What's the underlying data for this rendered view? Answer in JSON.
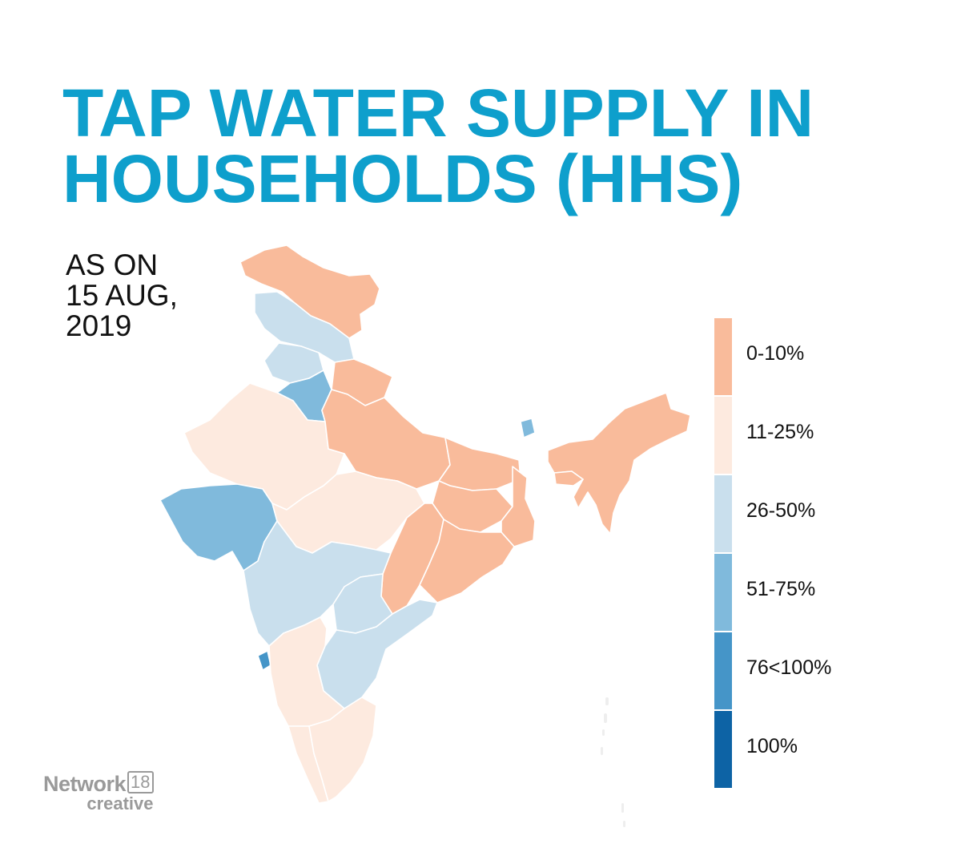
{
  "title": {
    "line1": "TAP WATER SUPPLY IN",
    "line2": "HOUSEHOLDS (HHS)"
  },
  "date": {
    "line1": "AS ON",
    "line2": "15 AUG,",
    "line3": "2019"
  },
  "legend": [
    {
      "label": "0-10%",
      "color": "#f9bb9b"
    },
    {
      "label": "11-25%",
      "color": "#fdeadf"
    },
    {
      "label": "26-50%",
      "color": "#c9dfed"
    },
    {
      "label": "51-75%",
      "color": "#80badc"
    },
    {
      "label": "76<100%",
      "color": "#4595c8"
    },
    {
      "label": "100%",
      "color": "#0d63a5"
    }
  ],
  "chart_data": {
    "type": "map",
    "category_colors": {
      "0-10%": "#f9bb9b",
      "11-25%": "#fdeadf",
      "26-50%": "#c9dfed",
      "51-75%": "#80badc",
      "76<100%": "#4595c8",
      "100%": "#0d63a5"
    }
  },
  "brand": {
    "main": "Network",
    "number": "18",
    "sub": "creative"
  }
}
